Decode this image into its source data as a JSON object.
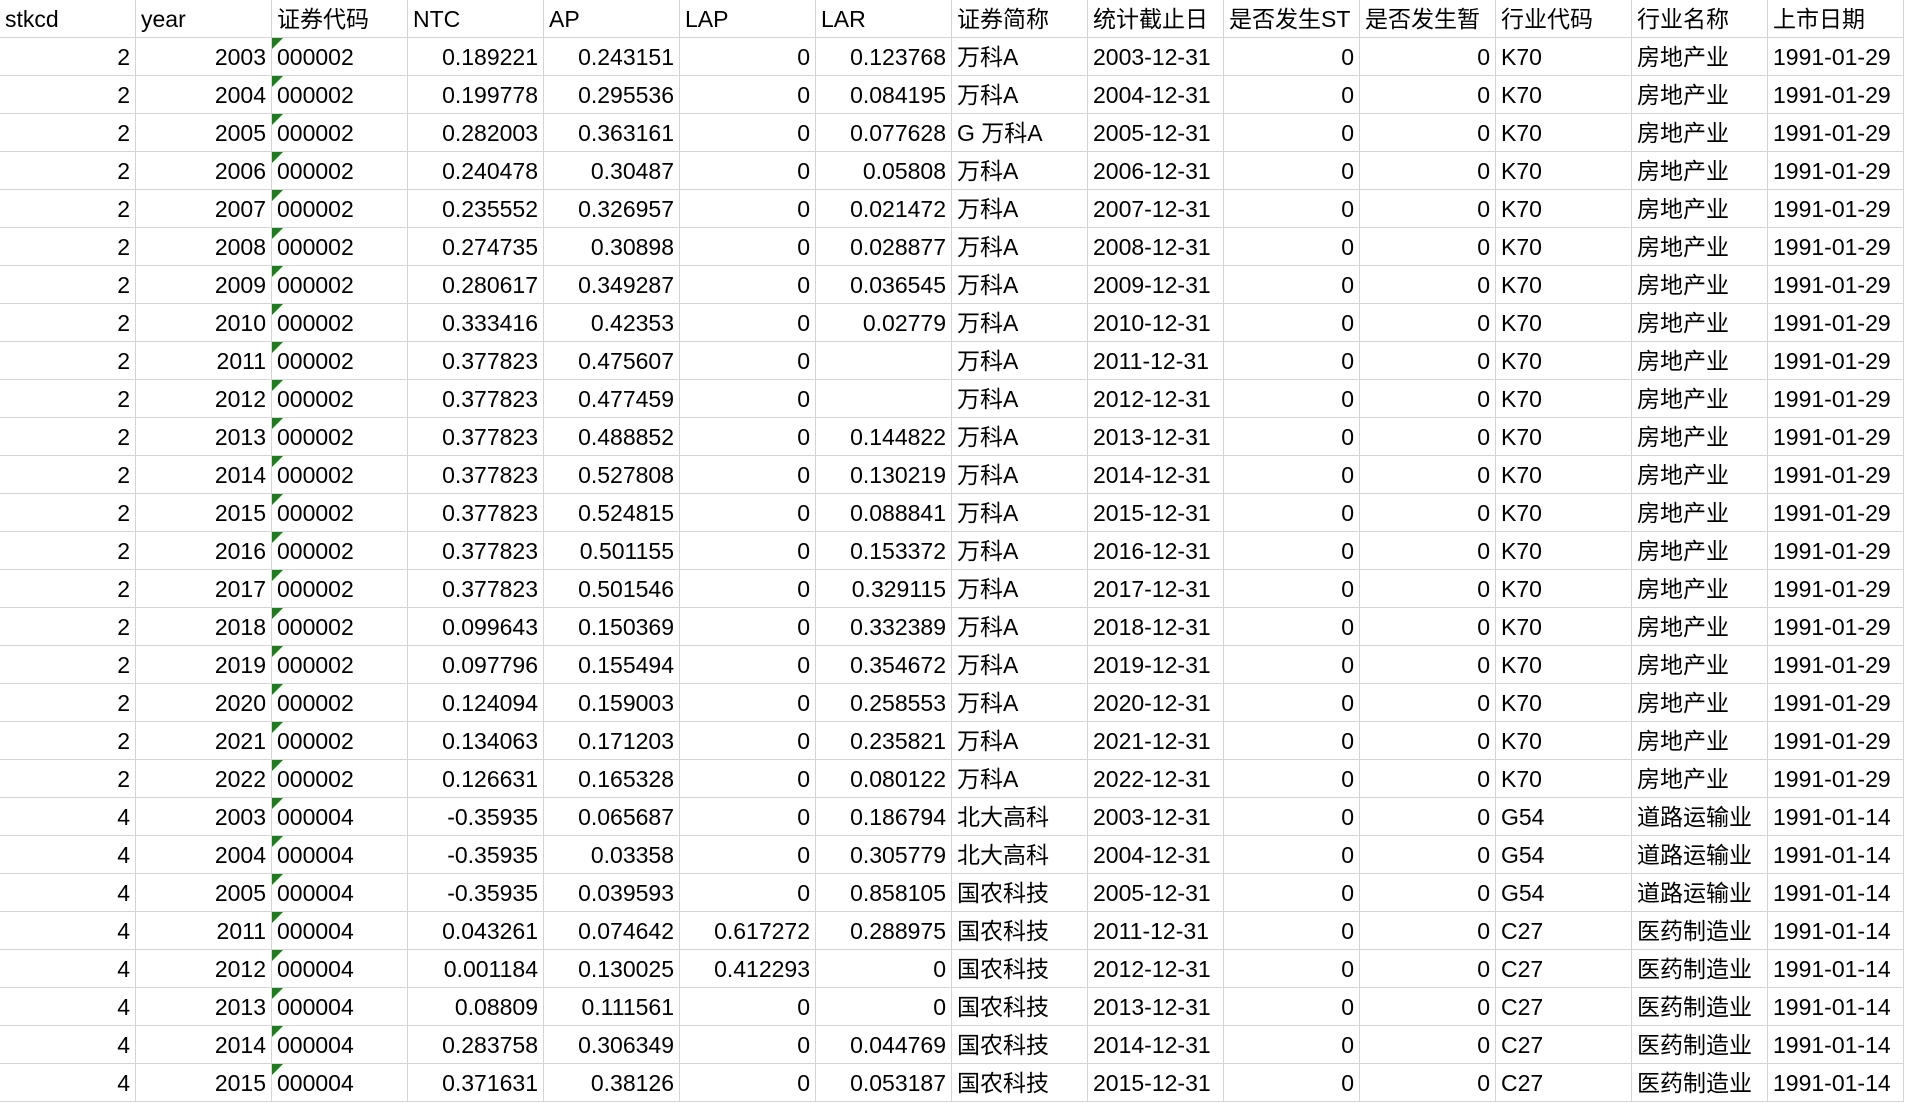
{
  "sheet": {
    "headers": [
      "stkcd",
      "year",
      "证券代码",
      "NTC",
      "AP",
      "LAP",
      "LAR",
      "证券简称",
      "统计截止日",
      "是否发生ST",
      "是否发生暂",
      "行业代码",
      "行业名称",
      "上市日期"
    ],
    "column_align": [
      "num",
      "num",
      "txt",
      "num",
      "num",
      "num",
      "num",
      "txt",
      "txt",
      "num",
      "num",
      "txt",
      "txt",
      "txt"
    ],
    "text_number_flag_column": 2,
    "flag_color": "#1e7b1e",
    "rows": [
      [
        "2",
        "2003",
        "000002",
        "0.189221",
        "0.243151",
        "0",
        "0.123768",
        "万科A",
        "2003-12-31",
        "0",
        "0",
        "K70",
        "房地产业",
        "1991-01-29"
      ],
      [
        "2",
        "2004",
        "000002",
        "0.199778",
        "0.295536",
        "0",
        "0.084195",
        "万科A",
        "2004-12-31",
        "0",
        "0",
        "K70",
        "房地产业",
        "1991-01-29"
      ],
      [
        "2",
        "2005",
        "000002",
        "0.282003",
        "0.363161",
        "0",
        "0.077628",
        "G 万科A",
        "2005-12-31",
        "0",
        "0",
        "K70",
        "房地产业",
        "1991-01-29"
      ],
      [
        "2",
        "2006",
        "000002",
        "0.240478",
        "0.30487",
        "0",
        "0.05808",
        "万科A",
        "2006-12-31",
        "0",
        "0",
        "K70",
        "房地产业",
        "1991-01-29"
      ],
      [
        "2",
        "2007",
        "000002",
        "0.235552",
        "0.326957",
        "0",
        "0.021472",
        "万科A",
        "2007-12-31",
        "0",
        "0",
        "K70",
        "房地产业",
        "1991-01-29"
      ],
      [
        "2",
        "2008",
        "000002",
        "0.274735",
        "0.30898",
        "0",
        "0.028877",
        "万科A",
        "2008-12-31",
        "0",
        "0",
        "K70",
        "房地产业",
        "1991-01-29"
      ],
      [
        "2",
        "2009",
        "000002",
        "0.280617",
        "0.349287",
        "0",
        "0.036545",
        "万科A",
        "2009-12-31",
        "0",
        "0",
        "K70",
        "房地产业",
        "1991-01-29"
      ],
      [
        "2",
        "2010",
        "000002",
        "0.333416",
        "0.42353",
        "0",
        "0.02779",
        "万科A",
        "2010-12-31",
        "0",
        "0",
        "K70",
        "房地产业",
        "1991-01-29"
      ],
      [
        "2",
        "2011",
        "000002",
        "0.377823",
        "0.475607",
        "0",
        "",
        "万科A",
        "2011-12-31",
        "0",
        "0",
        "K70",
        "房地产业",
        "1991-01-29"
      ],
      [
        "2",
        "2012",
        "000002",
        "0.377823",
        "0.477459",
        "0",
        "",
        "万科A",
        "2012-12-31",
        "0",
        "0",
        "K70",
        "房地产业",
        "1991-01-29"
      ],
      [
        "2",
        "2013",
        "000002",
        "0.377823",
        "0.488852",
        "0",
        "0.144822",
        "万科A",
        "2013-12-31",
        "0",
        "0",
        "K70",
        "房地产业",
        "1991-01-29"
      ],
      [
        "2",
        "2014",
        "000002",
        "0.377823",
        "0.527808",
        "0",
        "0.130219",
        "万科A",
        "2014-12-31",
        "0",
        "0",
        "K70",
        "房地产业",
        "1991-01-29"
      ],
      [
        "2",
        "2015",
        "000002",
        "0.377823",
        "0.524815",
        "0",
        "0.088841",
        "万科A",
        "2015-12-31",
        "0",
        "0",
        "K70",
        "房地产业",
        "1991-01-29"
      ],
      [
        "2",
        "2016",
        "000002",
        "0.377823",
        "0.501155",
        "0",
        "0.153372",
        "万科A",
        "2016-12-31",
        "0",
        "0",
        "K70",
        "房地产业",
        "1991-01-29"
      ],
      [
        "2",
        "2017",
        "000002",
        "0.377823",
        "0.501546",
        "0",
        "0.329115",
        "万科A",
        "2017-12-31",
        "0",
        "0",
        "K70",
        "房地产业",
        "1991-01-29"
      ],
      [
        "2",
        "2018",
        "000002",
        "0.099643",
        "0.150369",
        "0",
        "0.332389",
        "万科A",
        "2018-12-31",
        "0",
        "0",
        "K70",
        "房地产业",
        "1991-01-29"
      ],
      [
        "2",
        "2019",
        "000002",
        "0.097796",
        "0.155494",
        "0",
        "0.354672",
        "万科A",
        "2019-12-31",
        "0",
        "0",
        "K70",
        "房地产业",
        "1991-01-29"
      ],
      [
        "2",
        "2020",
        "000002",
        "0.124094",
        "0.159003",
        "0",
        "0.258553",
        "万科A",
        "2020-12-31",
        "0",
        "0",
        "K70",
        "房地产业",
        "1991-01-29"
      ],
      [
        "2",
        "2021",
        "000002",
        "0.134063",
        "0.171203",
        "0",
        "0.235821",
        "万科A",
        "2021-12-31",
        "0",
        "0",
        "K70",
        "房地产业",
        "1991-01-29"
      ],
      [
        "2",
        "2022",
        "000002",
        "0.126631",
        "0.165328",
        "0",
        "0.080122",
        "万科A",
        "2022-12-31",
        "0",
        "0",
        "K70",
        "房地产业",
        "1991-01-29"
      ],
      [
        "4",
        "2003",
        "000004",
        "-0.35935",
        "0.065687",
        "0",
        "0.186794",
        "北大高科",
        "2003-12-31",
        "0",
        "0",
        "G54",
        "道路运输业",
        "1991-01-14"
      ],
      [
        "4",
        "2004",
        "000004",
        "-0.35935",
        "0.03358",
        "0",
        "0.305779",
        "北大高科",
        "2004-12-31",
        "0",
        "0",
        "G54",
        "道路运输业",
        "1991-01-14"
      ],
      [
        "4",
        "2005",
        "000004",
        "-0.35935",
        "0.039593",
        "0",
        "0.858105",
        "国农科技",
        "2005-12-31",
        "0",
        "0",
        "G54",
        "道路运输业",
        "1991-01-14"
      ],
      [
        "4",
        "2011",
        "000004",
        "0.043261",
        "0.074642",
        "0.617272",
        "0.288975",
        "国农科技",
        "2011-12-31",
        "0",
        "0",
        "C27",
        "医药制造业",
        "1991-01-14"
      ],
      [
        "4",
        "2012",
        "000004",
        "0.001184",
        "0.130025",
        "0.412293",
        "0",
        "国农科技",
        "2012-12-31",
        "0",
        "0",
        "C27",
        "医药制造业",
        "1991-01-14"
      ],
      [
        "4",
        "2013",
        "000004",
        "0.08809",
        "0.111561",
        "0",
        "0",
        "国农科技",
        "2013-12-31",
        "0",
        "0",
        "C27",
        "医药制造业",
        "1991-01-14"
      ],
      [
        "4",
        "2014",
        "000004",
        "0.283758",
        "0.306349",
        "0",
        "0.044769",
        "国农科技",
        "2014-12-31",
        "0",
        "0",
        "C27",
        "医药制造业",
        "1991-01-14"
      ],
      [
        "4",
        "2015",
        "000004",
        "0.371631",
        "0.38126",
        "0",
        "0.053187",
        "国农科技",
        "2015-12-31",
        "0",
        "0",
        "C27",
        "医药制造业",
        "1991-01-14"
      ]
    ]
  }
}
